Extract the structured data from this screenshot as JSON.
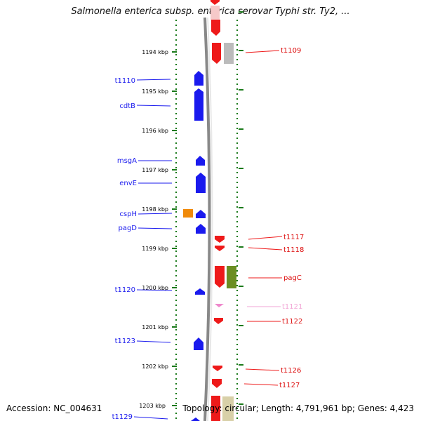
{
  "title": "Salmonella enterica subsp. enterica serovar Typhi str. Ty2, ...",
  "footer": {
    "accession": "Accession: NC_004631",
    "stats": "Topology: circular; Length: 4,791,961 bp; Genes: 4,423"
  },
  "colors": {
    "reverse_gene": "#1a1aee",
    "forward_gene": "#ee1a1a",
    "ruler_tick": "#1a7a1a",
    "backbone": "#888888",
    "orange_gene": "#f08a0a",
    "pink_gene": "#ee88cc",
    "olive_gene": "#6b8e23",
    "gray_gene": "#bbbbbb",
    "tan_gene": "#d8d0a8"
  },
  "ruler_labels": [
    "1194 kbp",
    "1195 kbp",
    "1196 kbp",
    "1197 kbp",
    "1198 kbp",
    "1199 kbp",
    "1200 kbp",
    "1201 kbp",
    "1202 kbp",
    "1203 kbp"
  ],
  "left_labels": [
    "t1110",
    "cdtB",
    "msgA",
    "envE",
    "cspH",
    "pagD",
    "t1120",
    "t1123",
    "t1129"
  ],
  "right_labels": [
    "t1109",
    "t1117",
    "t1118",
    "pagC",
    "t1121",
    "t1122",
    "t1126",
    "t1127"
  ]
}
